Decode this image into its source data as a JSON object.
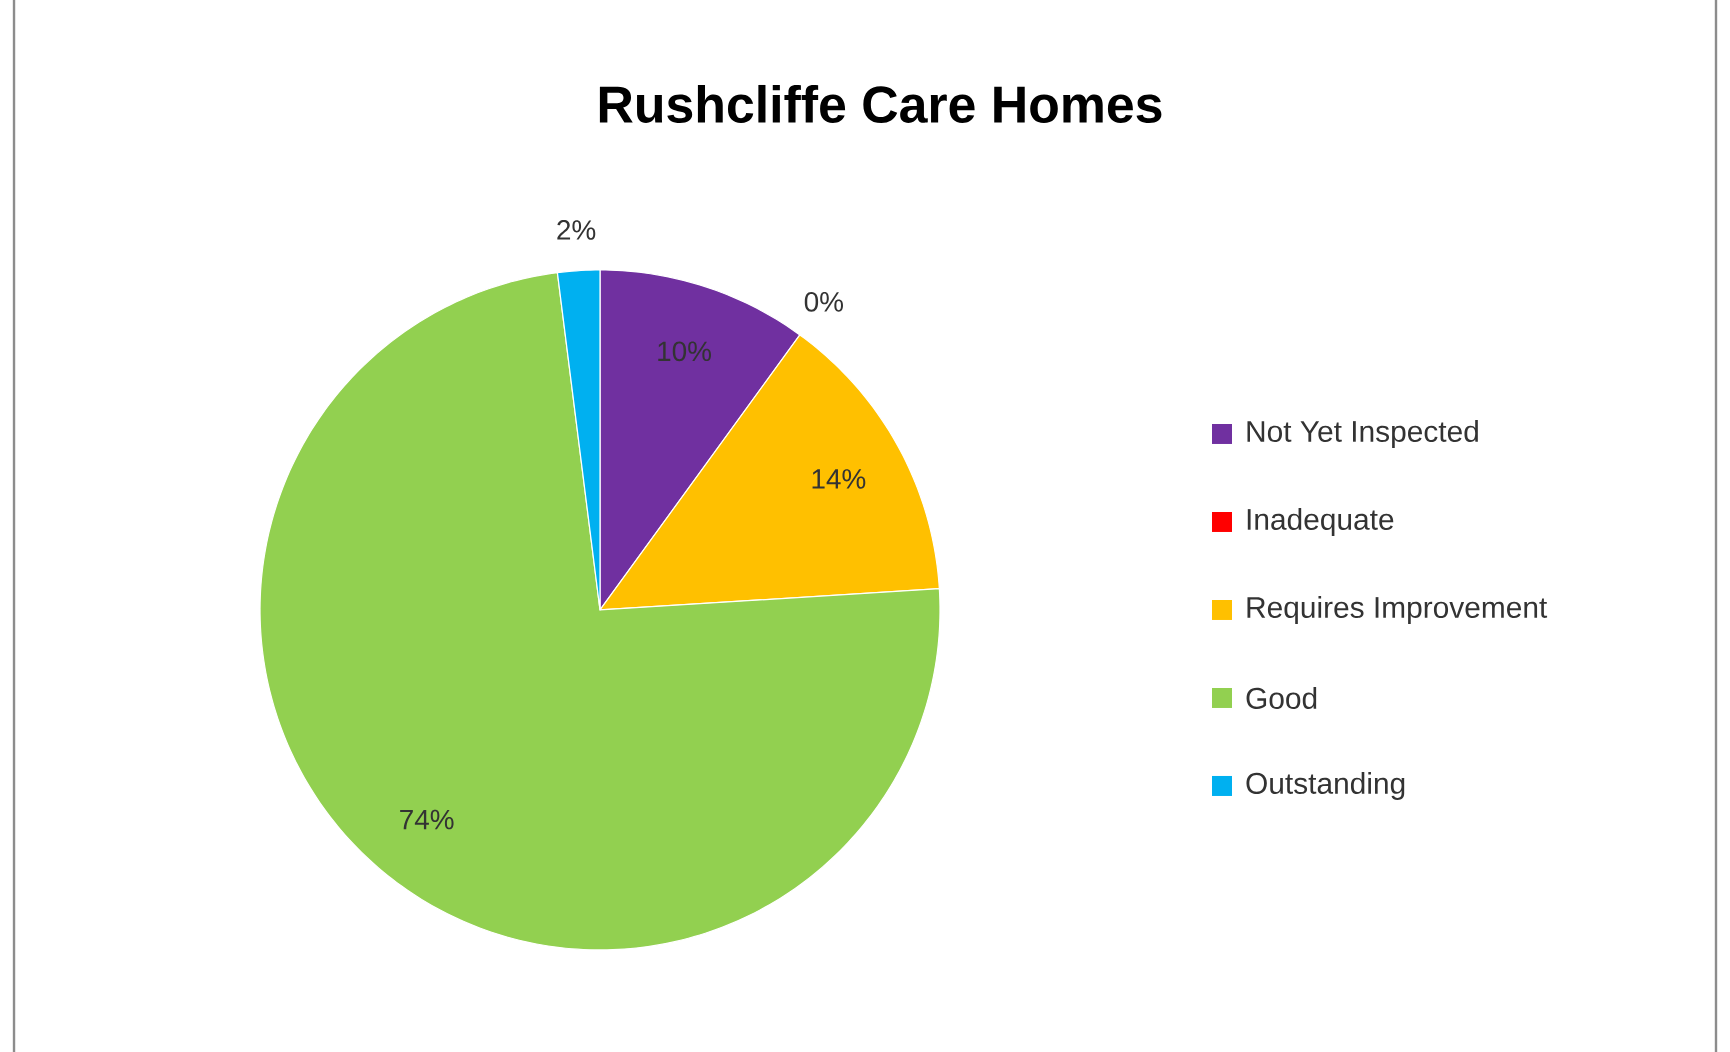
{
  "chart_data": {
    "type": "pie",
    "title": "Rushcliffe Care Homes",
    "categories": [
      "Not Yet Inspected",
      "Inadequate",
      "Requires Improvement",
      "Good",
      "Outstanding"
    ],
    "values": [
      10,
      0,
      14,
      74,
      2
    ],
    "colors": [
      "#7030a0",
      "#ff0000",
      "#ffc000",
      "#92d050",
      "#00b0f0"
    ],
    "value_labels": [
      "10%",
      "0%",
      "14%",
      "74%",
      "2%"
    ],
    "legend": "right"
  }
}
